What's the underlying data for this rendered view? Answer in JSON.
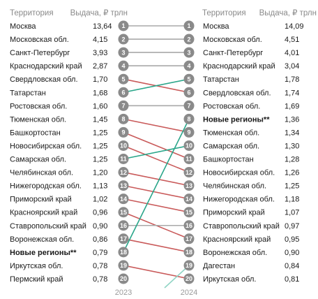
{
  "chart_data": {
    "type": "slope",
    "left": {
      "territory_header": "Территория",
      "value_header": "Выдача, ₽ трлн",
      "year": "2023",
      "rows": [
        {
          "rank": 1,
          "name": "Москва",
          "value": "13,64"
        },
        {
          "rank": 2,
          "name": "Московская обл.",
          "value": "4,15"
        },
        {
          "rank": 3,
          "name": "Санкт-Петербург",
          "value": "3,93"
        },
        {
          "rank": 4,
          "name": "Краснодарский край",
          "value": "2,87"
        },
        {
          "rank": 5,
          "name": "Свердловская обл.",
          "value": "1,70"
        },
        {
          "rank": 6,
          "name": "Татарстан",
          "value": "1,68"
        },
        {
          "rank": 7,
          "name": "Ростовская обл.",
          "value": "1,60"
        },
        {
          "rank": 8,
          "name": "Тюменская обл.",
          "value": "1,45"
        },
        {
          "rank": 9,
          "name": "Башкортостан",
          "value": "1,25"
        },
        {
          "rank": 10,
          "name": "Новосибирская обл.",
          "value": "1,25"
        },
        {
          "rank": 11,
          "name": "Самарская обл.",
          "value": "1,25"
        },
        {
          "rank": 12,
          "name": "Челябинская обл.",
          "value": "1,20"
        },
        {
          "rank": 13,
          "name": "Нижегородская обл.",
          "value": "1,13"
        },
        {
          "rank": 14,
          "name": "Приморский край",
          "value": "1,02"
        },
        {
          "rank": 15,
          "name": "Красноярский край",
          "value": "0,96"
        },
        {
          "rank": 16,
          "name": "Ставропольский край",
          "value": "0,90"
        },
        {
          "rank": 17,
          "name": "Воронежская обл.",
          "value": "0,86"
        },
        {
          "rank": 18,
          "name": "Новые регионы**",
          "value": "0,79",
          "bold": true
        },
        {
          "rank": 19,
          "name": "Иркутская обл.",
          "value": "0,78"
        },
        {
          "rank": 20,
          "name": "Пермский край",
          "value": "0,78"
        }
      ]
    },
    "right": {
      "territory_header": "Территория",
      "value_header": "Выдача, ₽ трлн",
      "year": "2024",
      "rows": [
        {
          "rank": 1,
          "name": "Москва",
          "value": "14,09"
        },
        {
          "rank": 2,
          "name": "Московская обл.",
          "value": "4,51"
        },
        {
          "rank": 3,
          "name": "Санкт-Петербург",
          "value": "4,01"
        },
        {
          "rank": 4,
          "name": "Краснодарский край",
          "value": "3,04"
        },
        {
          "rank": 5,
          "name": "Татарстан",
          "value": "1,78"
        },
        {
          "rank": 6,
          "name": "Свердловская обл.",
          "value": "1,74"
        },
        {
          "rank": 7,
          "name": "Ростовская обл.",
          "value": "1,69"
        },
        {
          "rank": 8,
          "name": "Новые регионы**",
          "value": "1,36",
          "bold": true
        },
        {
          "rank": 9,
          "name": "Тюменская обл.",
          "value": "1,34"
        },
        {
          "rank": 10,
          "name": "Самарская обл.",
          "value": "1,30"
        },
        {
          "rank": 11,
          "name": "Башкортостан",
          "value": "1,28"
        },
        {
          "rank": 12,
          "name": "Новосибирская обл.",
          "value": "1,26"
        },
        {
          "rank": 13,
          "name": "Челябинская обл.",
          "value": "1,25"
        },
        {
          "rank": 14,
          "name": "Нижегородская обл.",
          "value": "1,18"
        },
        {
          "rank": 15,
          "name": "Приморский край",
          "value": "1,07"
        },
        {
          "rank": 16,
          "name": "Ставропольский край",
          "value": "0,97"
        },
        {
          "rank": 17,
          "name": "Красноярский край",
          "value": "0,95"
        },
        {
          "rank": 18,
          "name": "Воронежская обл.",
          "value": "0,90"
        },
        {
          "rank": 19,
          "name": "Дагестан",
          "value": "0,84"
        },
        {
          "rank": 20,
          "name": "Иркутская обл.",
          "value": "0,81"
        }
      ]
    },
    "links": [
      {
        "from": 1,
        "to": 1,
        "change": "same"
      },
      {
        "from": 2,
        "to": 2,
        "change": "same"
      },
      {
        "from": 3,
        "to": 3,
        "change": "same"
      },
      {
        "from": 4,
        "to": 4,
        "change": "same"
      },
      {
        "from": 5,
        "to": 6,
        "change": "down"
      },
      {
        "from": 6,
        "to": 5,
        "change": "up"
      },
      {
        "from": 7,
        "to": 7,
        "change": "same"
      },
      {
        "from": 8,
        "to": 9,
        "change": "down"
      },
      {
        "from": 9,
        "to": 11,
        "change": "down"
      },
      {
        "from": 10,
        "to": 12,
        "change": "down"
      },
      {
        "from": 11,
        "to": 10,
        "change": "up"
      },
      {
        "from": 12,
        "to": 13,
        "change": "down"
      },
      {
        "from": 13,
        "to": 14,
        "change": "down"
      },
      {
        "from": 14,
        "to": 15,
        "change": "down"
      },
      {
        "from": 15,
        "to": 17,
        "change": "down"
      },
      {
        "from": 16,
        "to": 16,
        "change": "same"
      },
      {
        "from": 17,
        "to": 18,
        "change": "down"
      },
      {
        "from": 18,
        "to": 8,
        "change": "up"
      },
      {
        "from": 19,
        "to": 20,
        "change": "down"
      },
      {
        "from": null,
        "to": 19,
        "change": "new"
      }
    ],
    "colors": {
      "up": "#2aa68a",
      "down": "#c95a5a",
      "same": "#a8a8a8",
      "new": "#8fd4c4",
      "circle": "#8a8a8a"
    }
  }
}
